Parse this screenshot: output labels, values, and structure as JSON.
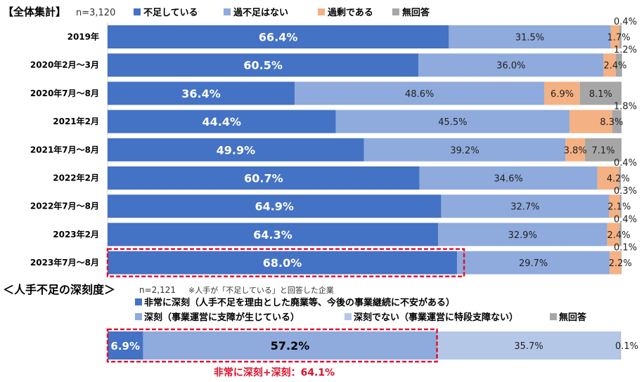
{
  "header": {
    "title": "【全体集計】",
    "n_label": "n=3,120"
  },
  "legend": [
    {
      "label": "不足している",
      "color": "#4472c4"
    },
    {
      "label": "過不足はない",
      "color": "#8faadc"
    },
    {
      "label": "過剰である",
      "color": "#f4b183"
    },
    {
      "label": "無回答",
      "color": "#a6a6a6"
    }
  ],
  "chart_data": [
    {
      "type": "bar",
      "orientation": "horizontal",
      "stacked": true,
      "categories": [
        "2019年",
        "2020年2月～3月",
        "2020年7月～8月",
        "2021年2月",
        "2021年7月～8月",
        "2022年2月",
        "2022年7月～8月",
        "2023年2月",
        "2023年7月～8月"
      ],
      "series": [
        {
          "name": "不足している",
          "color": "#4472c4",
          "values": [
            66.4,
            60.5,
            36.4,
            44.4,
            49.9,
            60.7,
            64.9,
            64.3,
            68.0
          ]
        },
        {
          "name": "過不足はない",
          "color": "#8faadc",
          "values": [
            31.5,
            36.0,
            48.6,
            45.5,
            39.2,
            34.6,
            32.7,
            32.9,
            29.7
          ]
        },
        {
          "name": "過剰である",
          "color": "#f4b183",
          "values": [
            1.7,
            2.4,
            6.9,
            8.3,
            3.8,
            4.2,
            2.1,
            2.4,
            2.2
          ]
        },
        {
          "name": "無回答",
          "color": "#a6a6a6",
          "values": [
            0.4,
            1.2,
            8.1,
            1.8,
            7.1,
            0.4,
            0.3,
            0.4,
            0.1
          ]
        }
      ],
      "xlim": [
        0,
        100
      ],
      "highlight_category": "2023年7月～8月"
    },
    {
      "type": "bar",
      "orientation": "horizontal",
      "stacked": true,
      "categories": [
        ""
      ],
      "series": [
        {
          "name": "非常に深刻（人手不足を理由とした廃業等、今後の事業継続に不安がある）",
          "color": "#4472c4",
          "values": [
            6.9
          ]
        },
        {
          "name": "深刻（事業運営に支障が生じている）",
          "color": "#8faadc",
          "values": [
            57.2
          ]
        },
        {
          "name": "深刻でない（事業運営に特段支障ない）",
          "color": "#b4c7e7",
          "values": [
            35.7
          ]
        },
        {
          "name": "無回答",
          "color": "#a6a6a6",
          "values": [
            0.1
          ]
        }
      ],
      "xlim": [
        0,
        100
      ]
    }
  ],
  "section2": {
    "title": "＜人手不足の深刻度＞",
    "n_label": "n=2,121",
    "note": "※人手が「不足している」と回答した企業",
    "summary": "非常に深刻+深刻：64.1%"
  },
  "colors": {
    "highlight": "#e0102d"
  }
}
